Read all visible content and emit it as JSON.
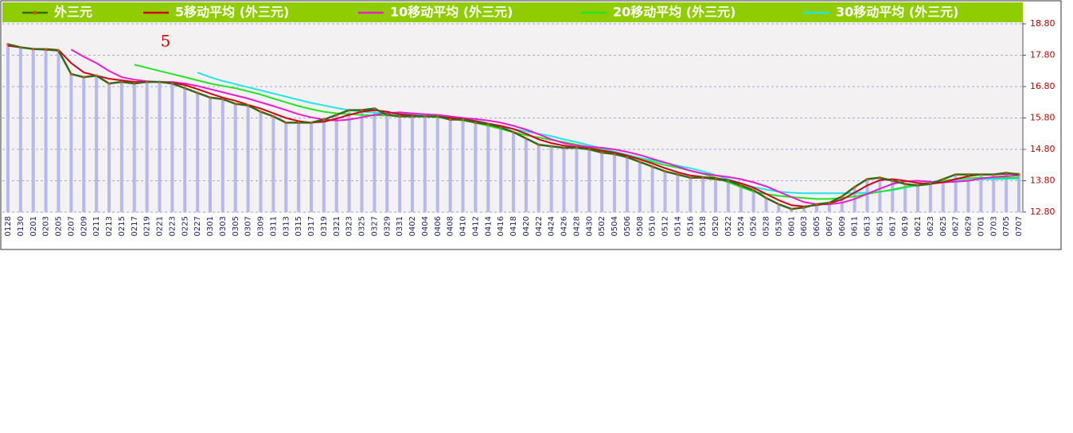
{
  "chart_data": {
    "type": "line",
    "annotation": "5",
    "categories": [
      "0128",
      "0130",
      "0201",
      "0203",
      "0205",
      "0207",
      "0209",
      "0211",
      "0213",
      "0215",
      "0217",
      "0219",
      "0221",
      "0223",
      "0225",
      "0227",
      "0301",
      "0303",
      "0305",
      "0307",
      "0309",
      "0311",
      "0313",
      "0315",
      "0317",
      "0319",
      "0321",
      "0323",
      "0325",
      "0327",
      "0329",
      "0331",
      "0402",
      "0404",
      "0406",
      "0408",
      "0410",
      "0412",
      "0414",
      "0416",
      "0418",
      "0420",
      "0422",
      "0424",
      "0426",
      "0428",
      "0430",
      "0502",
      "0504",
      "0506",
      "0508",
      "0510",
      "0512",
      "0514",
      "0516",
      "0518",
      "0520",
      "0522",
      "0524",
      "0526",
      "0528",
      "0530",
      "0601",
      "0603",
      "0605",
      "0607",
      "0609",
      "0611",
      "0613",
      "0615",
      "0617",
      "0619",
      "0621",
      "0623",
      "0625",
      "0627",
      "0629",
      "0701",
      "0703",
      "0705",
      "0707"
    ],
    "series": [
      {
        "name": "外三元",
        "color": "#2e6b1a",
        "values": [
          18.15,
          18.05,
          18.0,
          17.98,
          17.95,
          17.2,
          17.1,
          17.15,
          16.9,
          16.95,
          16.9,
          16.95,
          16.95,
          16.9,
          16.75,
          16.6,
          16.45,
          16.4,
          16.25,
          16.2,
          16.0,
          15.85,
          15.65,
          15.65,
          15.65,
          15.75,
          15.9,
          16.05,
          16.05,
          16.1,
          15.9,
          15.85,
          15.85,
          15.85,
          15.85,
          15.75,
          15.75,
          15.65,
          15.6,
          15.5,
          15.35,
          15.15,
          14.95,
          14.9,
          14.85,
          14.85,
          14.8,
          14.7,
          14.65,
          14.55,
          14.4,
          14.25,
          14.1,
          14.0,
          13.9,
          13.9,
          13.85,
          13.8,
          13.65,
          13.5,
          13.25,
          13.05,
          12.9,
          12.95,
          13.05,
          13.1,
          13.3,
          13.6,
          13.85,
          13.9,
          13.8,
          13.7,
          13.65,
          13.7,
          13.85,
          14.0,
          14.0,
          14.0,
          14.0,
          14.05,
          14.0
        ]
      },
      {
        "name": "5移动平均 (外三元)",
        "color": "#d4001a",
        "values": [
          18.1,
          18.05,
          18.0,
          18.0,
          17.97,
          17.55,
          17.25,
          17.15,
          17.05,
          17.0,
          16.95,
          16.95,
          16.95,
          16.92,
          16.85,
          16.72,
          16.58,
          16.45,
          16.35,
          16.22,
          16.1,
          15.95,
          15.8,
          15.7,
          15.65,
          15.68,
          15.78,
          15.9,
          16.0,
          16.05,
          16.0,
          15.92,
          15.88,
          15.85,
          15.85,
          15.8,
          15.77,
          15.7,
          15.62,
          15.55,
          15.45,
          15.3,
          15.12,
          15.0,
          14.92,
          14.87,
          14.83,
          14.76,
          14.7,
          14.6,
          14.48,
          14.35,
          14.2,
          14.07,
          13.97,
          13.92,
          13.88,
          13.82,
          13.72,
          13.58,
          13.38,
          13.18,
          13.02,
          12.98,
          13.02,
          13.08,
          13.2,
          13.42,
          13.65,
          13.82,
          13.85,
          13.8,
          13.73,
          13.7,
          13.75,
          13.85,
          13.95,
          14.0,
          14.0,
          14.02,
          14.02
        ]
      },
      {
        "name": "10移动平均 (外三元)",
        "color": "#ee1ad0",
        "values": [
          null,
          null,
          null,
          null,
          null,
          17.98,
          17.75,
          17.55,
          17.3,
          17.1,
          17.02,
          16.97,
          16.95,
          16.95,
          16.9,
          16.82,
          16.72,
          16.62,
          16.52,
          16.42,
          16.3,
          16.18,
          16.05,
          15.92,
          15.82,
          15.75,
          15.72,
          15.75,
          15.82,
          15.9,
          15.95,
          15.98,
          15.95,
          15.92,
          15.9,
          15.85,
          15.8,
          15.77,
          15.72,
          15.65,
          15.55,
          15.43,
          15.28,
          15.12,
          15.0,
          14.92,
          14.88,
          14.85,
          14.8,
          14.72,
          14.62,
          14.5,
          14.38,
          14.25,
          14.12,
          14.03,
          13.97,
          13.92,
          13.85,
          13.75,
          13.62,
          13.45,
          13.28,
          13.12,
          13.05,
          13.05,
          13.1,
          13.22,
          13.38,
          13.55,
          13.7,
          13.78,
          13.8,
          13.77,
          13.75,
          13.77,
          13.8,
          13.87,
          13.92,
          13.95,
          13.97
        ]
      },
      {
        "name": "20移动平均 (外三元)",
        "color": "#22e622",
        "values": [
          null,
          null,
          null,
          null,
          null,
          null,
          null,
          null,
          null,
          null,
          17.5,
          17.4,
          17.3,
          17.2,
          17.1,
          17.0,
          16.9,
          16.82,
          16.75,
          16.65,
          16.55,
          16.42,
          16.3,
          16.18,
          16.08,
          16.0,
          15.95,
          15.92,
          15.9,
          15.88,
          15.88,
          15.88,
          15.87,
          15.85,
          15.82,
          15.78,
          15.72,
          15.65,
          15.55,
          15.45,
          15.35,
          15.25,
          15.18,
          15.1,
          15.03,
          14.95,
          14.87,
          14.78,
          14.7,
          14.6,
          14.5,
          14.4,
          14.3,
          14.22,
          14.12,
          14.02,
          13.9,
          13.75,
          13.6,
          13.45,
          13.38,
          13.32,
          13.28,
          13.25,
          13.22,
          13.22,
          13.25,
          13.3,
          13.38,
          13.45,
          13.52,
          13.6,
          13.68,
          13.75,
          13.8,
          13.85,
          13.88,
          13.9,
          13.9,
          13.9,
          13.9
        ]
      },
      {
        "name": "30移动平均 (外三元)",
        "color": "#22e6e6",
        "values": [
          null,
          null,
          null,
          null,
          null,
          null,
          null,
          null,
          null,
          null,
          null,
          null,
          null,
          null,
          null,
          17.25,
          17.1,
          16.98,
          16.88,
          16.78,
          16.68,
          16.58,
          16.48,
          16.38,
          16.28,
          16.2,
          16.12,
          16.05,
          16.0,
          15.97,
          15.95,
          15.93,
          15.92,
          15.9,
          15.88,
          15.85,
          15.8,
          15.72,
          15.63,
          15.53,
          15.45,
          15.38,
          15.3,
          15.22,
          15.12,
          15.03,
          14.93,
          14.83,
          14.73,
          14.63,
          14.53,
          14.45,
          14.37,
          14.28,
          14.2,
          14.1,
          13.98,
          13.85,
          13.72,
          13.6,
          13.52,
          13.45,
          13.42,
          13.4,
          13.4,
          13.4,
          13.4,
          13.4,
          13.42,
          13.45,
          13.5,
          13.58,
          13.65,
          13.72,
          13.78,
          13.8,
          13.82,
          13.85,
          13.85,
          13.86,
          13.87
        ]
      }
    ],
    "bar_color": "#b8b8f0",
    "ylim": [
      12.8,
      18.8
    ],
    "yticks": [
      {
        "value": 12.8,
        "label": "12.80"
      },
      {
        "value": 13.8,
        "label": "13.80"
      },
      {
        "value": 14.8,
        "label": "14.80"
      },
      {
        "value": 15.8,
        "label": "15.80"
      },
      {
        "value": 16.8,
        "label": "16.80"
      },
      {
        "value": 17.8,
        "label": "17.80"
      },
      {
        "value": 18.8,
        "label": "18.80"
      }
    ],
    "grid": true,
    "axis_side": "right"
  }
}
